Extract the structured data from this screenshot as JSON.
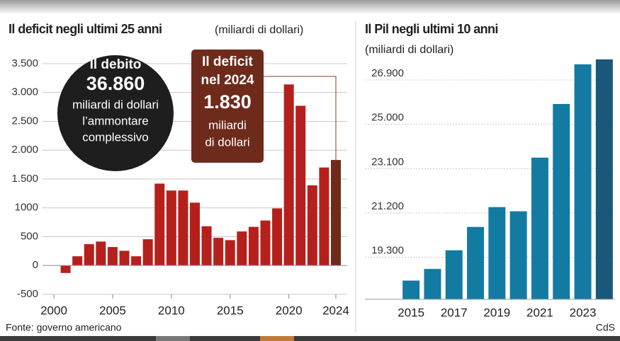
{
  "chart_data": [
    {
      "type": "bar",
      "title": "Il deficit negli ultimi 25 anni",
      "subtitle": "(miliardi di dollari)",
      "x": [
        2001,
        2002,
        2003,
        2004,
        2005,
        2006,
        2007,
        2008,
        2009,
        2010,
        2011,
        2012,
        2013,
        2014,
        2015,
        2016,
        2017,
        2018,
        2019,
        2020,
        2021,
        2022,
        2023,
        2024
      ],
      "values": [
        -130,
        160,
        370,
        415,
        320,
        255,
        160,
        455,
        1420,
        1300,
        1300,
        1090,
        680,
        480,
        440,
        590,
        670,
        780,
        990,
        3140,
        2770,
        1390,
        1700,
        1830
      ],
      "color": "#b5201c",
      "last_color": "#6e2a1b",
      "xlim": [
        2000,
        2024
      ],
      "xticks": [
        2000,
        2005,
        2010,
        2015,
        2020,
        2024
      ],
      "ylim": [
        -500,
        3500
      ],
      "yticks": [
        -500,
        0,
        500,
        1000,
        {
          "value": 1500,
          "label": "1.500"
        },
        {
          "value": 2000,
          "label": "2.000"
        },
        {
          "value": 2500,
          "label": "2.500"
        },
        {
          "value": 3000,
          "label": "3.000"
        },
        {
          "value": 3500,
          "label": "3.500"
        }
      ],
      "grid": true,
      "annotations": [
        {
          "lines": [
            "Il debito",
            "36.860",
            "miliardi di dollari",
            "l’ammontare",
            "complessivo"
          ]
        },
        {
          "lines": [
            "Il deficit",
            "nel 2024",
            "1.830",
            "miliardi",
            "di dollari"
          ]
        }
      ]
    },
    {
      "type": "bar",
      "title": "Il Pil negli ultimi 10 anni",
      "subtitle": "(miliardi di dollari)",
      "categories": [
        "2015",
        null,
        "2017",
        null,
        "2019",
        null,
        "2021",
        null,
        "2023",
        null
      ],
      "values": [
        18300,
        18800,
        19600,
        20600,
        21450,
        21270,
        23570,
        25870,
        27570,
        27780
      ],
      "color": "#137ba2",
      "last_color": "#195878",
      "ylim": [
        17500,
        27900
      ],
      "yticks": [
        {
          "value": 19300,
          "label": "19.300"
        },
        {
          "value": 21200,
          "label": "21.200"
        },
        {
          "value": 23100,
          "label": "23.100"
        },
        {
          "value": 25000,
          "label": "25.000"
        },
        {
          "value": 26900,
          "label": "26.900"
        }
      ],
      "grid": true
    }
  ],
  "footer": {
    "source": "Fonte: governo americano",
    "credit": "CdS"
  }
}
